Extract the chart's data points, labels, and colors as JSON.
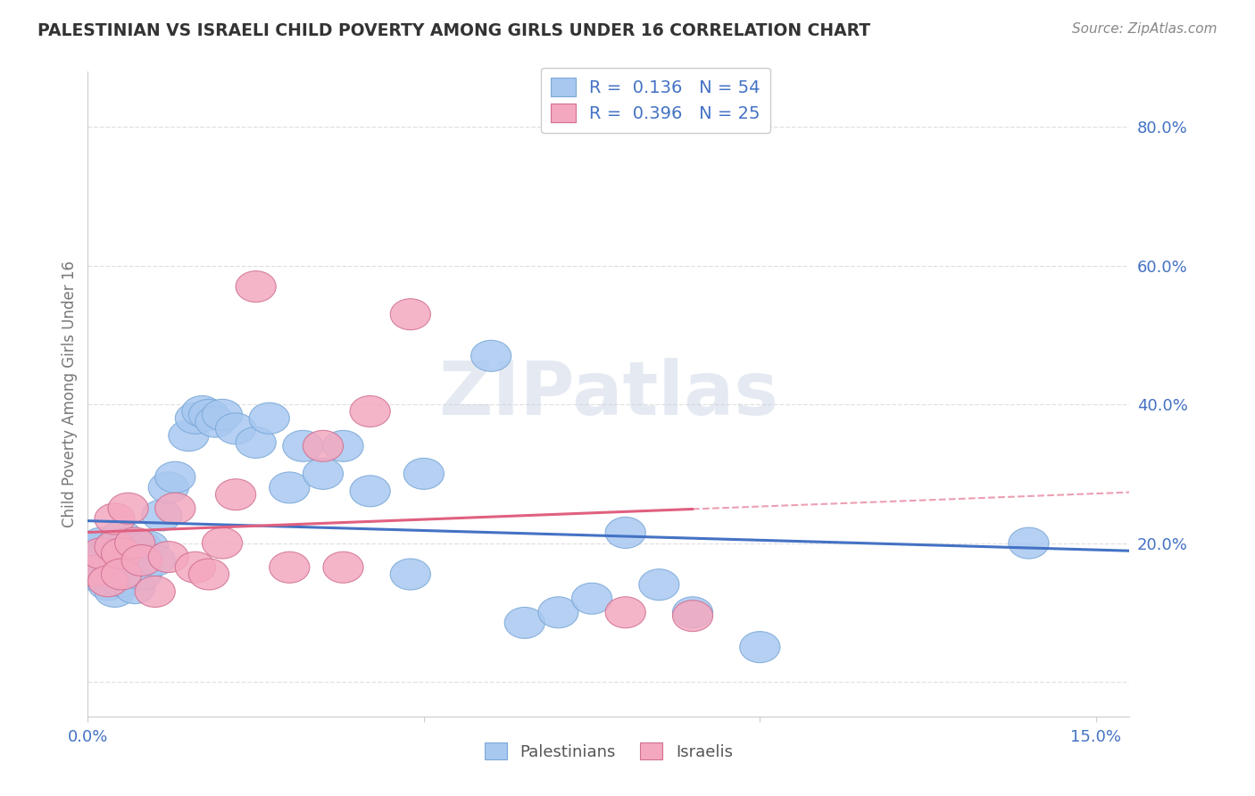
{
  "title": "PALESTINIAN VS ISRAELI CHILD POVERTY AMONG GIRLS UNDER 16 CORRELATION CHART",
  "source": "Source: ZipAtlas.com",
  "ylabel": "Child Poverty Among Girls Under 16",
  "watermark": "ZIPatlas",
  "xlim": [
    0.0,
    0.155
  ],
  "ylim": [
    -0.05,
    0.88
  ],
  "ytick_positions": [
    0.0,
    0.2,
    0.4,
    0.6,
    0.8
  ],
  "ytick_labels": [
    "",
    "20.0%",
    "40.0%",
    "60.0%",
    "80.0%"
  ],
  "xtick_positions": [
    0.0,
    0.05,
    0.1,
    0.15
  ],
  "xtick_labels": [
    "0.0%",
    "",
    "",
    "15.0%"
  ],
  "pal_color": "#a8c8f0",
  "pal_edge": "#7aa8d8",
  "pal_line": "#4472c4",
  "isr_color": "#f4a8c0",
  "isr_edge": "#d07090",
  "isr_line": "#e06080",
  "pal_R": "0.136",
  "pal_N": "54",
  "isr_R": "0.396",
  "isr_N": "25",
  "pal_x": [
    0.001,
    0.001,
    0.001,
    0.002,
    0.002,
    0.002,
    0.002,
    0.003,
    0.003,
    0.003,
    0.003,
    0.004,
    0.004,
    0.004,
    0.005,
    0.005,
    0.005,
    0.005,
    0.006,
    0.006,
    0.007,
    0.007,
    0.008,
    0.008,
    0.009,
    0.01,
    0.011,
    0.012,
    0.013,
    0.015,
    0.016,
    0.017,
    0.018,
    0.019,
    0.02,
    0.022,
    0.025,
    0.027,
    0.03,
    0.032,
    0.035,
    0.038,
    0.042,
    0.048,
    0.05,
    0.06,
    0.065,
    0.07,
    0.075,
    0.08,
    0.085,
    0.09,
    0.1,
    0.14
  ],
  "pal_y": [
    0.19,
    0.175,
    0.165,
    0.2,
    0.18,
    0.165,
    0.15,
    0.175,
    0.185,
    0.155,
    0.14,
    0.195,
    0.165,
    0.13,
    0.195,
    0.21,
    0.175,
    0.145,
    0.2,
    0.165,
    0.19,
    0.135,
    0.195,
    0.155,
    0.195,
    0.175,
    0.24,
    0.28,
    0.295,
    0.355,
    0.38,
    0.39,
    0.385,
    0.375,
    0.385,
    0.365,
    0.345,
    0.38,
    0.28,
    0.34,
    0.3,
    0.34,
    0.275,
    0.155,
    0.3,
    0.47,
    0.085,
    0.1,
    0.12,
    0.215,
    0.14,
    0.1,
    0.05,
    0.2
  ],
  "isr_x": [
    0.001,
    0.002,
    0.003,
    0.004,
    0.004,
    0.005,
    0.005,
    0.006,
    0.007,
    0.008,
    0.01,
    0.012,
    0.013,
    0.016,
    0.018,
    0.02,
    0.022,
    0.025,
    0.03,
    0.035,
    0.038,
    0.042,
    0.048,
    0.08,
    0.09
  ],
  "isr_y": [
    0.16,
    0.185,
    0.145,
    0.195,
    0.235,
    0.185,
    0.155,
    0.25,
    0.2,
    0.175,
    0.13,
    0.18,
    0.25,
    0.165,
    0.155,
    0.2,
    0.27,
    0.57,
    0.165,
    0.34,
    0.165,
    0.39,
    0.53,
    0.1,
    0.095
  ],
  "grid_color": "#e0e0e0",
  "bg_color": "#ffffff",
  "title_color": "#333333",
  "axis_label_color": "#777777",
  "tick_color": "#4472c4"
}
